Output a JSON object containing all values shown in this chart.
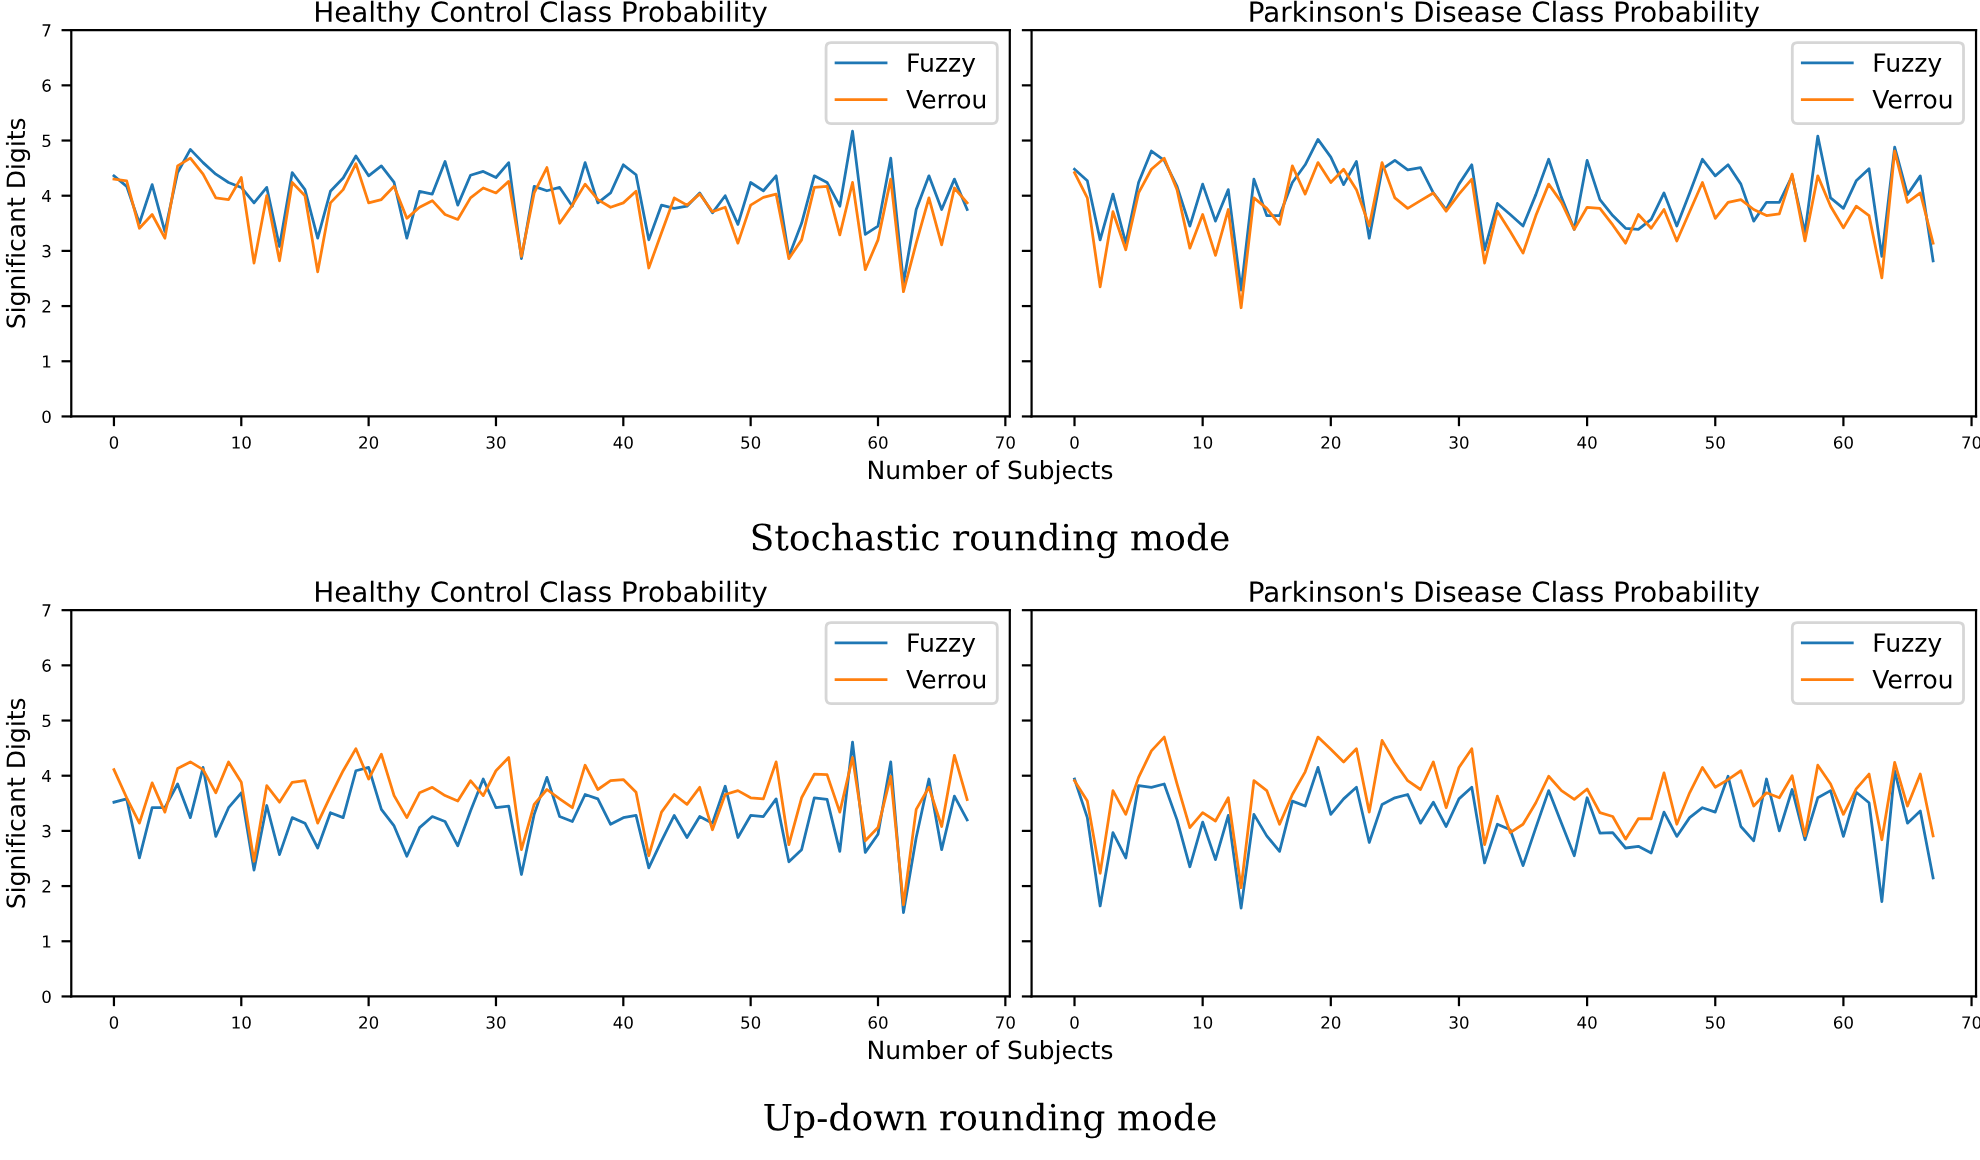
{
  "chart_data": [
    {
      "type": "line",
      "title": "Healthy Control Class Probability",
      "xlabel": "Number of Subjects",
      "ylabel": "Significant Digits",
      "annotations": [
        "Stochastic rounding mode"
      ],
      "xlim": [
        -3.35,
        70.35
      ],
      "xticks": [
        0,
        10,
        20,
        30,
        40,
        50,
        60,
        70
      ],
      "ylim": [
        0,
        7
      ],
      "yticks": [
        0,
        1,
        2,
        3,
        4,
        5,
        6,
        7
      ],
      "grid": false,
      "legend": "top right",
      "marker": "none",
      "line_style": "solid",
      "x": [
        0,
        1,
        2,
        3,
        4,
        5,
        6,
        7,
        8,
        9,
        10,
        11,
        12,
        13,
        14,
        15,
        16,
        17,
        18,
        19,
        20,
        21,
        22,
        23,
        24,
        25,
        26,
        27,
        28,
        29,
        30,
        31,
        32,
        33,
        34,
        35,
        36,
        37,
        38,
        39,
        40,
        41,
        42,
        43,
        44,
        45,
        46,
        47,
        48,
        49,
        50,
        51,
        52,
        53,
        54,
        55,
        56,
        57,
        58,
        59,
        60,
        61,
        62,
        63,
        64,
        65,
        66,
        67
      ],
      "series": [
        {
          "name": "Fuzzy",
          "color": "#1f77b4",
          "values": [
            4.36,
            4.17,
            3.5,
            4.2,
            3.35,
            4.42,
            4.84,
            4.6,
            4.39,
            4.24,
            4.15,
            3.87,
            4.15,
            3.08,
            4.42,
            4.11,
            3.23,
            4.08,
            4.32,
            4.72,
            4.36,
            4.54,
            4.24,
            3.23,
            4.08,
            4.03,
            4.62,
            3.83,
            4.37,
            4.44,
            4.33,
            4.6,
            2.86,
            4.17,
            4.09,
            4.15,
            3.81,
            4.6,
            3.87,
            4.05,
            4.56,
            4.38,
            3.2,
            3.83,
            3.77,
            3.81,
            4.05,
            3.69,
            4.0,
            3.48,
            4.24,
            4.09,
            4.36,
            2.9,
            3.5,
            4.36,
            4.24,
            3.81,
            5.17,
            3.3,
            3.45,
            4.68,
            2.42,
            3.75,
            4.36,
            3.75,
            4.3,
            3.75
          ]
        },
        {
          "name": "Verrou",
          "color": "#ff7f0e",
          "values": [
            4.3,
            4.27,
            3.41,
            3.66,
            3.23,
            4.54,
            4.68,
            4.39,
            3.96,
            3.93,
            4.33,
            2.78,
            4.0,
            2.82,
            4.24,
            4.0,
            2.62,
            3.87,
            4.11,
            4.58,
            3.87,
            3.93,
            4.17,
            3.59,
            3.79,
            3.91,
            3.66,
            3.57,
            3.96,
            4.14,
            4.05,
            4.26,
            2.9,
            4.05,
            4.51,
            3.5,
            3.83,
            4.21,
            3.93,
            3.79,
            3.87,
            4.08,
            2.69,
            3.33,
            3.96,
            3.83,
            4.03,
            3.71,
            3.79,
            3.14,
            3.83,
            3.97,
            4.03,
            2.86,
            3.2,
            4.15,
            4.17,
            3.29,
            4.24,
            2.66,
            3.2,
            4.3,
            2.26,
            3.14,
            3.96,
            3.11,
            4.14,
            3.87
          ]
        }
      ]
    },
    {
      "type": "line",
      "title": "Parkinson's Disease Class Probability",
      "tick_labels": "x",
      "xlim": [
        -3.35,
        70.35
      ],
      "xticks": [
        0,
        10,
        20,
        30,
        40,
        50,
        60,
        70
      ],
      "ylim": [
        0,
        7
      ],
      "yticks": [
        0,
        1,
        2,
        3,
        4,
        5,
        6,
        7
      ],
      "grid": false,
      "legend": "top right",
      "marker": "none",
      "line_style": "solid",
      "x": [
        0,
        1,
        2,
        3,
        4,
        5,
        6,
        7,
        8,
        9,
        10,
        11,
        12,
        13,
        14,
        15,
        16,
        17,
        18,
        19,
        20,
        21,
        22,
        23,
        24,
        25,
        26,
        27,
        28,
        29,
        30,
        31,
        32,
        33,
        34,
        35,
        36,
        37,
        38,
        39,
        40,
        41,
        42,
        43,
        44,
        45,
        46,
        47,
        48,
        49,
        50,
        51,
        52,
        53,
        54,
        55,
        56,
        57,
        58,
        59,
        60,
        61,
        62,
        63,
        64,
        65,
        66,
        67
      ],
      "series": [
        {
          "name": "Fuzzy",
          "color": "#1f77b4",
          "values": [
            4.48,
            4.27,
            3.2,
            4.03,
            3.14,
            4.24,
            4.81,
            4.64,
            4.17,
            3.45,
            4.21,
            3.54,
            4.11,
            2.29,
            4.3,
            3.64,
            3.64,
            4.24,
            4.56,
            5.02,
            4.7,
            4.2,
            4.62,
            3.23,
            4.48,
            4.64,
            4.47,
            4.51,
            4.05,
            3.75,
            4.21,
            4.56,
            3.02,
            3.86,
            3.66,
            3.45,
            4.02,
            4.66,
            3.97,
            3.39,
            4.64,
            3.93,
            3.64,
            3.41,
            3.39,
            3.57,
            4.05,
            3.45,
            4.05,
            4.66,
            4.36,
            4.56,
            4.21,
            3.54,
            3.88,
            3.88,
            4.36,
            3.33,
            5.08,
            3.96,
            3.77,
            4.27,
            4.49,
            2.9,
            4.88,
            4.02,
            4.36,
            2.82
          ]
        },
        {
          "name": "Verrou",
          "color": "#ff7f0e",
          "values": [
            4.42,
            3.96,
            2.35,
            3.71,
            3.02,
            4.05,
            4.48,
            4.68,
            4.11,
            3.05,
            3.66,
            2.92,
            3.75,
            1.97,
            3.96,
            3.77,
            3.48,
            4.54,
            4.03,
            4.6,
            4.24,
            4.48,
            4.11,
            3.45,
            4.6,
            3.96,
            3.77,
            3.91,
            4.05,
            3.72,
            4.03,
            4.3,
            2.78,
            3.72,
            3.35,
            2.96,
            3.64,
            4.21,
            3.88,
            3.39,
            3.79,
            3.77,
            3.47,
            3.14,
            3.66,
            3.41,
            3.75,
            3.18,
            3.71,
            4.24,
            3.59,
            3.88,
            3.93,
            3.75,
            3.64,
            3.67,
            4.39,
            3.18,
            4.36,
            3.81,
            3.42,
            3.81,
            3.64,
            2.51,
            4.81,
            3.88,
            4.05,
            3.14
          ]
        }
      ]
    },
    {
      "type": "line",
      "title": "Healthy Control Class Probability",
      "xlabel": "Number of Subjects",
      "ylabel": "Significant Digits",
      "annotations": [
        "Up-down rounding mode"
      ],
      "xlim": [
        -3.35,
        70.35
      ],
      "xticks": [
        0,
        10,
        20,
        30,
        40,
        50,
        60,
        70
      ],
      "ylim": [
        0,
        7
      ],
      "yticks": [
        0,
        1,
        2,
        3,
        4,
        5,
        6,
        7
      ],
      "grid": false,
      "legend": "top right",
      "marker": "none",
      "line_style": "solid",
      "x": [
        0,
        1,
        2,
        3,
        4,
        5,
        6,
        7,
        8,
        9,
        10,
        11,
        12,
        13,
        14,
        15,
        16,
        17,
        18,
        19,
        20,
        21,
        22,
        23,
        24,
        25,
        26,
        27,
        28,
        29,
        30,
        31,
        32,
        33,
        34,
        35,
        36,
        37,
        38,
        39,
        40,
        41,
        42,
        43,
        44,
        45,
        46,
        47,
        48,
        49,
        50,
        51,
        52,
        53,
        54,
        55,
        56,
        57,
        58,
        59,
        60,
        61,
        62,
        63,
        64,
        65,
        66,
        67
      ],
      "series": [
        {
          "name": "Fuzzy",
          "color": "#1f77b4",
          "values": [
            3.52,
            3.58,
            2.51,
            3.42,
            3.42,
            3.85,
            3.24,
            4.15,
            2.9,
            3.42,
            3.69,
            2.29,
            3.46,
            2.57,
            3.24,
            3.14,
            2.69,
            3.33,
            3.24,
            4.09,
            4.15,
            3.39,
            3.09,
            2.54,
            3.06,
            3.26,
            3.17,
            2.73,
            3.36,
            3.94,
            3.42,
            3.45,
            2.21,
            3.3,
            3.97,
            3.26,
            3.17,
            3.66,
            3.58,
            3.12,
            3.24,
            3.28,
            2.33,
            2.82,
            3.28,
            2.88,
            3.26,
            3.14,
            3.81,
            2.88,
            3.28,
            3.26,
            3.58,
            2.44,
            2.66,
            3.6,
            3.57,
            2.63,
            4.61,
            2.61,
            2.94,
            4.25,
            1.52,
            2.88,
            3.94,
            2.66,
            3.63,
            3.2
          ]
        },
        {
          "name": "Verrou",
          "color": "#ff7f0e",
          "values": [
            4.11,
            3.6,
            3.14,
            3.87,
            3.34,
            4.13,
            4.25,
            4.11,
            3.69,
            4.25,
            3.88,
            2.45,
            3.82,
            3.52,
            3.88,
            3.91,
            3.14,
            3.63,
            4.09,
            4.49,
            3.94,
            4.39,
            3.64,
            3.24,
            3.69,
            3.79,
            3.64,
            3.54,
            3.91,
            3.64,
            4.09,
            4.33,
            2.66,
            3.48,
            3.75,
            3.58,
            3.42,
            4.19,
            3.75,
            3.91,
            3.93,
            3.7,
            2.55,
            3.34,
            3.66,
            3.48,
            3.79,
            3.02,
            3.66,
            3.73,
            3.6,
            3.58,
            4.25,
            2.75,
            3.6,
            4.03,
            4.02,
            3.34,
            4.33,
            2.82,
            3.06,
            3.99,
            1.66,
            3.39,
            3.79,
            3.08,
            4.37,
            3.57
          ]
        }
      ]
    },
    {
      "type": "line",
      "title": "Parkinson's Disease Class Probability",
      "tick_labels": "x",
      "xlim": [
        -3.35,
        70.35
      ],
      "xticks": [
        0,
        10,
        20,
        30,
        40,
        50,
        60,
        70
      ],
      "ylim": [
        0,
        7
      ],
      "yticks": [
        0,
        1,
        2,
        3,
        4,
        5,
        6,
        7
      ],
      "grid": false,
      "legend": "top right",
      "marker": "none",
      "line_style": "solid",
      "x": [
        0,
        1,
        2,
        3,
        4,
        5,
        6,
        7,
        8,
        9,
        10,
        11,
        12,
        13,
        14,
        15,
        16,
        17,
        18,
        19,
        20,
        21,
        22,
        23,
        24,
        25,
        26,
        27,
        28,
        29,
        30,
        31,
        32,
        33,
        34,
        35,
        36,
        37,
        38,
        39,
        40,
        41,
        42,
        43,
        44,
        45,
        46,
        47,
        48,
        49,
        50,
        51,
        52,
        53,
        54,
        55,
        56,
        57,
        58,
        59,
        60,
        61,
        62,
        63,
        64,
        65,
        66,
        67
      ],
      "series": [
        {
          "name": "Fuzzy",
          "color": "#1f77b4",
          "values": [
            3.94,
            3.24,
            1.64,
            2.97,
            2.51,
            3.82,
            3.79,
            3.85,
            3.2,
            2.35,
            3.16,
            2.48,
            3.28,
            1.6,
            3.3,
            2.91,
            2.63,
            3.54,
            3.45,
            4.15,
            3.3,
            3.58,
            3.79,
            2.79,
            3.48,
            3.6,
            3.66,
            3.14,
            3.52,
            3.08,
            3.58,
            3.79,
            2.42,
            3.12,
            3.02,
            2.37,
            3.06,
            3.73,
            3.14,
            2.55,
            3.6,
            2.96,
            2.97,
            2.69,
            2.72,
            2.6,
            3.34,
            2.9,
            3.24,
            3.42,
            3.34,
            3.99,
            3.08,
            2.82,
            3.94,
            3.0,
            3.75,
            2.84,
            3.6,
            3.73,
            2.9,
            3.7,
            3.51,
            1.72,
            4.09,
            3.14,
            3.36,
            2.15
          ]
        },
        {
          "name": "Verrou",
          "color": "#ff7f0e",
          "values": [
            3.91,
            3.54,
            2.23,
            3.73,
            3.3,
            3.97,
            4.45,
            4.7,
            3.85,
            3.06,
            3.33,
            3.18,
            3.6,
            1.97,
            3.91,
            3.73,
            3.12,
            3.66,
            4.07,
            4.7,
            4.48,
            4.25,
            4.49,
            3.34,
            4.64,
            4.24,
            3.91,
            3.75,
            4.25,
            3.42,
            4.15,
            4.49,
            2.75,
            3.63,
            2.97,
            3.12,
            3.51,
            3.99,
            3.73,
            3.57,
            3.76,
            3.33,
            3.26,
            2.85,
            3.22,
            3.22,
            4.05,
            3.12,
            3.69,
            4.15,
            3.79,
            3.93,
            4.09,
            3.45,
            3.69,
            3.6,
            4.0,
            2.91,
            4.19,
            3.85,
            3.3,
            3.76,
            4.03,
            2.84,
            4.24,
            3.45,
            4.03,
            2.91
          ]
        }
      ]
    }
  ]
}
